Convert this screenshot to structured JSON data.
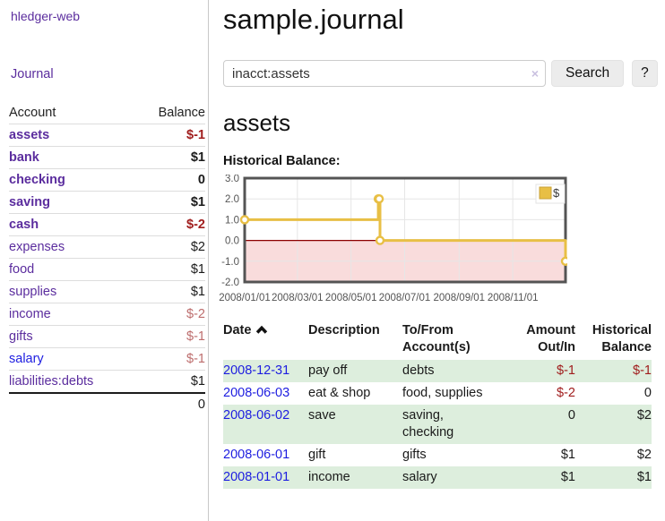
{
  "sidebar": {
    "brand": "hledger-web",
    "journal_label": "Journal",
    "accounts_table": {
      "headers": {
        "account": "Account",
        "balance": "Balance"
      },
      "rows": [
        {
          "name": "assets",
          "balance": "$-1",
          "depth": 1,
          "bold": true,
          "neg": "strong"
        },
        {
          "name": "bank",
          "balance": "$1",
          "depth": 2,
          "bold": true,
          "neg": null
        },
        {
          "name": "checking",
          "balance": "0",
          "depth": 3,
          "bold": true,
          "neg": null
        },
        {
          "name": "saving",
          "balance": "$1",
          "depth": 3,
          "bold": true,
          "neg": null
        },
        {
          "name": "cash",
          "balance": "$-2",
          "depth": 2,
          "bold": true,
          "neg": "strong"
        },
        {
          "name": "expenses",
          "balance": "$2",
          "depth": 1,
          "bold": false,
          "neg": null
        },
        {
          "name": "food",
          "balance": "$1",
          "depth": 2,
          "bold": false,
          "neg": null
        },
        {
          "name": "supplies",
          "balance": "$1",
          "depth": 2,
          "bold": false,
          "neg": null
        },
        {
          "name": "income",
          "balance": "$-2",
          "depth": 1,
          "bold": false,
          "neg": "muted"
        },
        {
          "name": "gifts",
          "balance": "$-1",
          "depth": 2,
          "bold": false,
          "neg": "muted"
        },
        {
          "name": "salary",
          "balance": "$-1",
          "depth": 2,
          "bold": false,
          "neg": "muted",
          "blue": true
        },
        {
          "name": "liabilities:debts",
          "balance": "$1",
          "depth": 1,
          "bold": false,
          "neg": null
        }
      ],
      "total": "0"
    }
  },
  "header": {
    "title": "sample.journal"
  },
  "search": {
    "value": "inacct:assets",
    "clear_icon": "×",
    "search_label": "Search",
    "help_label": "?"
  },
  "account_page": {
    "heading": "assets",
    "chart_label": "Historical Balance:"
  },
  "chart_data": {
    "type": "line",
    "step": true,
    "title": "Historical Balance",
    "x": [
      "2008-01-01",
      "2008-06-01",
      "2008-06-02",
      "2008-06-03",
      "2008-12-31"
    ],
    "series": [
      {
        "name": "$",
        "values": [
          1,
          2,
          2,
          0,
          -1
        ]
      }
    ],
    "xrange": [
      "2008-01-01",
      "2008-12-31"
    ],
    "ylim": [
      -2,
      3
    ],
    "yticks": [
      3,
      2,
      1,
      0,
      -1,
      -2
    ],
    "xticks": [
      {
        "date": "2008-01-01",
        "label": "2008/01/01"
      },
      {
        "date": "2008-03-01",
        "label": "2008/03/01"
      },
      {
        "date": "2008-05-01",
        "label": "2008/05/01"
      },
      {
        "date": "2008-07-01",
        "label": "2008/07/01"
      },
      {
        "date": "2008-09-01",
        "label": "2008/09/01"
      },
      {
        "date": "2008-11-01",
        "label": "2008/11/01"
      }
    ],
    "legend_position": "top-right",
    "grid": true,
    "xlabel": "",
    "ylabel": "",
    "colors": {
      "line": "#e8bf45",
      "marker_fill": "#ffffff",
      "negative_region": "#f9dcdc",
      "zero_line": "#8b0000",
      "plot_border": "#545454",
      "grid": "#e6e6e6",
      "tick_text": "#545454",
      "legend_swatch_border": "#c9a238"
    }
  },
  "register": {
    "headers": {
      "date": "Date",
      "description": "Description",
      "tofrom": "To/From Account(s)",
      "amount": "Amount Out/In",
      "balance": "Historical Balance"
    },
    "rows": [
      {
        "date": "2008-12-31",
        "description": "pay off",
        "accounts": "debts",
        "amount": "$-1",
        "balance": "$-1"
      },
      {
        "date": "2008-06-03",
        "description": "eat & shop",
        "accounts": "food, supplies",
        "amount": "$-2",
        "balance": "0"
      },
      {
        "date": "2008-06-02",
        "description": "save",
        "accounts": "saving,\nchecking",
        "amount": "0",
        "balance": "$2"
      },
      {
        "date": "2008-06-01",
        "description": "gift",
        "accounts": "gifts",
        "amount": "$1",
        "balance": "$2"
      },
      {
        "date": "2008-01-01",
        "description": "income",
        "accounts": "salary",
        "amount": "$1",
        "balance": "$1"
      }
    ]
  },
  "colors": {
    "accent_purple": "#5b2d9e",
    "link_blue": "#1d1de0",
    "negative_strong": "#a01d1d",
    "negative_muted": "#bd6d6d",
    "row_stripe_green": "#ddeedd"
  }
}
